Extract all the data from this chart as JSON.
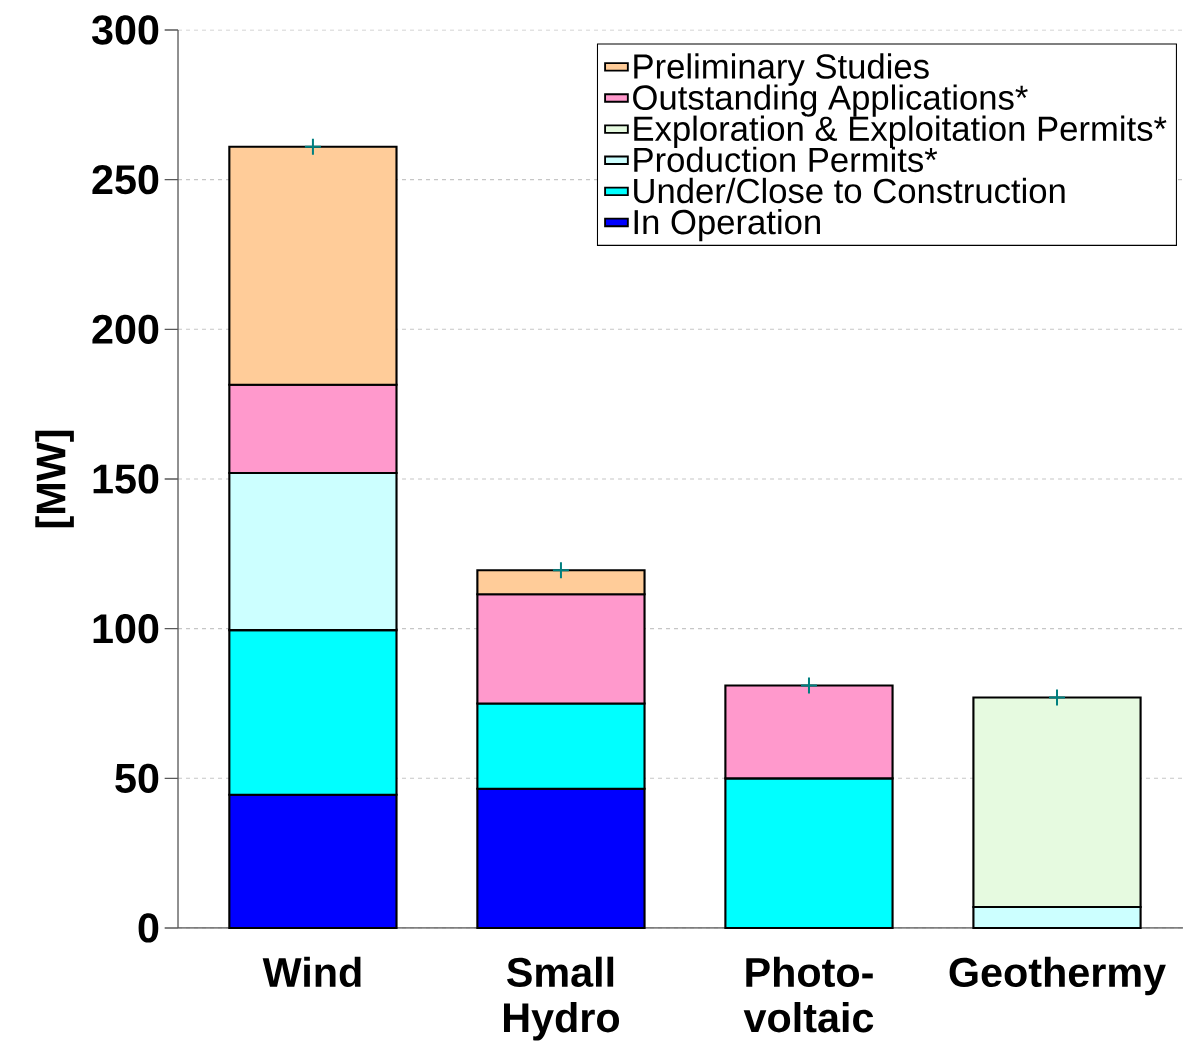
{
  "chart_data": {
    "type": "bar",
    "stacked": true,
    "ylabel": "[MW]",
    "categories": [
      "Wind",
      "Small Hydro",
      "Photo-voltaic",
      "Geothermy"
    ],
    "series": [
      {
        "name": "In Operation",
        "color": "#0000ff",
        "values": [
          44.5,
          46.5,
          null,
          null
        ]
      },
      {
        "name": "Under/Close to Construction",
        "color": "#00ffff",
        "values": [
          55,
          28.5,
          50,
          null
        ]
      },
      {
        "name": "Production Permits*",
        "color": "#ccffff",
        "values": [
          52.5,
          null,
          null,
          7
        ]
      },
      {
        "name": "Exploration & Exploitation Permits*",
        "color": "#e6fae0",
        "values": [
          null,
          null,
          null,
          70
        ]
      },
      {
        "name": "Outstanding Applications*",
        "color": "#ff99cc",
        "values": [
          29.5,
          36.5,
          31,
          null
        ]
      },
      {
        "name": "Preliminary Studies",
        "color": "#ffcc99",
        "values": [
          79.5,
          8,
          null,
          null
        ]
      },
      {
        "type": "scatter",
        "color": "#008080",
        "marker": "cross",
        "values": [
          261,
          119.5,
          81,
          77
        ]
      }
    ],
    "ylim": [
      0,
      300
    ],
    "yticks": [
      0,
      50,
      100,
      150,
      200,
      250,
      300
    ],
    "grid": "y",
    "legend": "top right"
  }
}
